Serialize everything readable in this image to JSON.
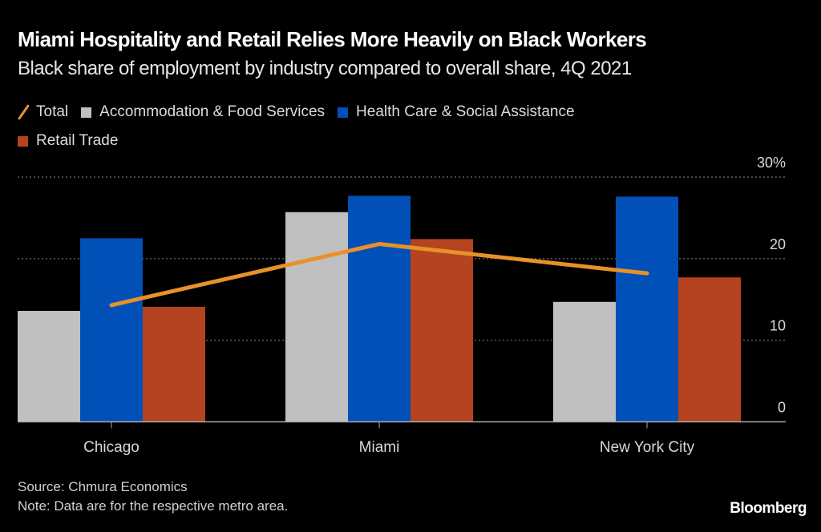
{
  "header": {
    "title": "Miami Hospitality and Retail Relies More Heavily on Black Workers",
    "subtitle": "Black share of employment by industry compared to overall share, 4Q 2021"
  },
  "footer": {
    "source": "Source: Chmura Economics",
    "note": "Note: Data are for the respective metro area.",
    "brand": "Bloomberg"
  },
  "colors": {
    "background": "#000000",
    "total": "#E8912A",
    "accommodation": "#C0C0C0",
    "health": "#0050B8",
    "retail": "#B5431F",
    "grid": "#777777",
    "axis": "#AAAAAA",
    "tick_label": "#D8D8D8"
  },
  "chart_data": {
    "type": "bar",
    "title": "Miami Hospitality and Retail Relies More Heavily on Black Workers",
    "subtitle": "Black share of employment by industry compared to overall share, 4Q 2021",
    "xlabel": "",
    "ylabel": "",
    "categories": [
      "Chicago",
      "Miami",
      "New York City"
    ],
    "ylim": [
      0,
      30
    ],
    "yticks": [
      0,
      10,
      20,
      30
    ],
    "ytick_labels": [
      "0",
      "10",
      "20",
      "30%"
    ],
    "y_axis_side": "right",
    "grid": true,
    "legend_position": "top-left",
    "series": [
      {
        "name": "Accommodation & Food Services",
        "type": "bar",
        "color_key": "accommodation",
        "values": [
          13.6,
          25.7,
          14.7
        ]
      },
      {
        "name": "Health Care & Social Assistance",
        "type": "bar",
        "color_key": "health",
        "values": [
          22.5,
          27.7,
          27.6
        ]
      },
      {
        "name": "Retail Trade",
        "type": "bar",
        "color_key": "retail",
        "values": [
          14.1,
          22.4,
          17.7
        ]
      },
      {
        "name": "Total",
        "type": "line",
        "color_key": "total",
        "values": [
          14.3,
          21.8,
          18.2
        ]
      }
    ],
    "legend": [
      {
        "label": "Total",
        "kind": "line",
        "color_key": "total"
      },
      {
        "label": "Accommodation & Food Services",
        "kind": "box",
        "color_key": "accommodation"
      },
      {
        "label": "Health Care & Social Assistance",
        "kind": "box",
        "color_key": "health"
      },
      {
        "label": "Retail Trade",
        "kind": "box",
        "color_key": "retail"
      }
    ]
  }
}
